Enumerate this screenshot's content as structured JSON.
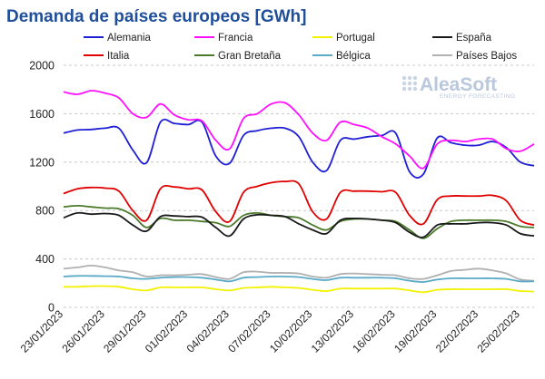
{
  "chart_data": {
    "type": "line",
    "title": "Demanda de países europeos [GWh]",
    "xlabel": "",
    "ylabel": "",
    "ylim": [
      0,
      2000
    ],
    "yticks": [
      "0",
      "400",
      "800",
      "1200",
      "1600",
      "2000"
    ],
    "grid": "horizontal-dashed",
    "legend_position": "top",
    "x": [
      "23/01/2023",
      "24/01/2023",
      "25/01/2023",
      "26/01/2023",
      "27/01/2023",
      "28/01/2023",
      "29/01/2023",
      "30/01/2023",
      "31/01/2023",
      "01/02/2023",
      "02/02/2023",
      "03/02/2023",
      "04/02/2023",
      "05/02/2023",
      "06/02/2023",
      "07/02/2023",
      "08/02/2023",
      "09/02/2023",
      "10/02/2023",
      "11/02/2023",
      "12/02/2023",
      "13/02/2023",
      "14/02/2023",
      "15/02/2023",
      "16/02/2023",
      "17/02/2023",
      "18/02/2023",
      "19/02/2023",
      "20/02/2023",
      "21/02/2023",
      "22/02/2023",
      "23/02/2023",
      "24/02/2023",
      "25/02/2023",
      "26/02/2023"
    ],
    "xticks": [
      "23/01/2023",
      "26/01/2023",
      "29/01/2023",
      "01/02/2023",
      "04/02/2023",
      "07/02/2023",
      "10/02/2023",
      "13/02/2023",
      "16/02/2023",
      "19/02/2023",
      "22/02/2023",
      "25/02/2023"
    ],
    "series": [
      {
        "name": "Alemania",
        "color": "#1f1fd6",
        "values": [
          1440,
          1465,
          1470,
          1480,
          1480,
          1300,
          1195,
          1530,
          1520,
          1510,
          1530,
          1250,
          1190,
          1420,
          1460,
          1480,
          1480,
          1410,
          1200,
          1130,
          1380,
          1390,
          1410,
          1420,
          1440,
          1120,
          1100,
          1400,
          1360,
          1340,
          1340,
          1370,
          1320,
          1200,
          1170
        ]
      },
      {
        "name": "Francia",
        "color": "#ff10ff",
        "values": [
          1780,
          1760,
          1790,
          1770,
          1730,
          1600,
          1570,
          1680,
          1590,
          1550,
          1540,
          1380,
          1310,
          1560,
          1600,
          1680,
          1690,
          1590,
          1440,
          1380,
          1530,
          1510,
          1480,
          1410,
          1350,
          1250,
          1150,
          1350,
          1380,
          1370,
          1390,
          1390,
          1310,
          1290,
          1350
        ]
      },
      {
        "name": "Portugal",
        "color": "#f2f200",
        "values": [
          170,
          170,
          175,
          175,
          170,
          150,
          140,
          165,
          165,
          165,
          165,
          150,
          140,
          160,
          165,
          170,
          165,
          160,
          145,
          135,
          155,
          155,
          155,
          155,
          155,
          140,
          125,
          145,
          150,
          150,
          150,
          150,
          150,
          135,
          130
        ]
      },
      {
        "name": "España",
        "color": "#1a1a1a",
        "values": [
          740,
          780,
          770,
          775,
          760,
          680,
          630,
          750,
          755,
          750,
          745,
          660,
          590,
          730,
          765,
          760,
          750,
          690,
          640,
          610,
          720,
          735,
          730,
          720,
          700,
          620,
          580,
          680,
          690,
          690,
          700,
          700,
          680,
          610,
          590
        ]
      },
      {
        "name": "Italia",
        "color": "#e00000",
        "values": [
          940,
          980,
          990,
          985,
          960,
          800,
          720,
          980,
          995,
          980,
          970,
          790,
          710,
          950,
          1000,
          1030,
          1040,
          1020,
          790,
          730,
          950,
          960,
          960,
          955,
          950,
          760,
          690,
          890,
          920,
          920,
          920,
          925,
          880,
          720,
          680
        ]
      },
      {
        "name": "Gran Bretaña",
        "color": "#4a7a2a",
        "values": [
          830,
          840,
          830,
          820,
          815,
          760,
          660,
          735,
          720,
          720,
          710,
          700,
          670,
          760,
          780,
          760,
          750,
          740,
          680,
          640,
          710,
          730,
          730,
          720,
          710,
          640,
          570,
          650,
          710,
          720,
          720,
          720,
          710,
          670,
          660
        ]
      },
      {
        "name": "Bélgica",
        "color": "#5aaac8",
        "values": [
          255,
          260,
          260,
          258,
          255,
          240,
          235,
          245,
          250,
          250,
          245,
          230,
          215,
          245,
          250,
          255,
          255,
          250,
          235,
          225,
          245,
          245,
          245,
          245,
          240,
          220,
          210,
          230,
          240,
          240,
          240,
          240,
          235,
          215,
          215
        ]
      },
      {
        "name": "Países Bajos",
        "color": "#b0b0b0",
        "values": [
          320,
          330,
          345,
          330,
          305,
          290,
          255,
          265,
          265,
          270,
          275,
          250,
          235,
          290,
          295,
          285,
          285,
          280,
          255,
          245,
          275,
          280,
          275,
          270,
          265,
          240,
          235,
          265,
          300,
          310,
          320,
          305,
          280,
          230,
          220
        ]
      }
    ]
  },
  "logo": {
    "main": "AleaSoft",
    "sub": "ENERGY FORECASTING"
  },
  "colors": {
    "title": "#1f4e9a",
    "grid": "#c8c8c8",
    "logo": "#b9c8dc"
  }
}
